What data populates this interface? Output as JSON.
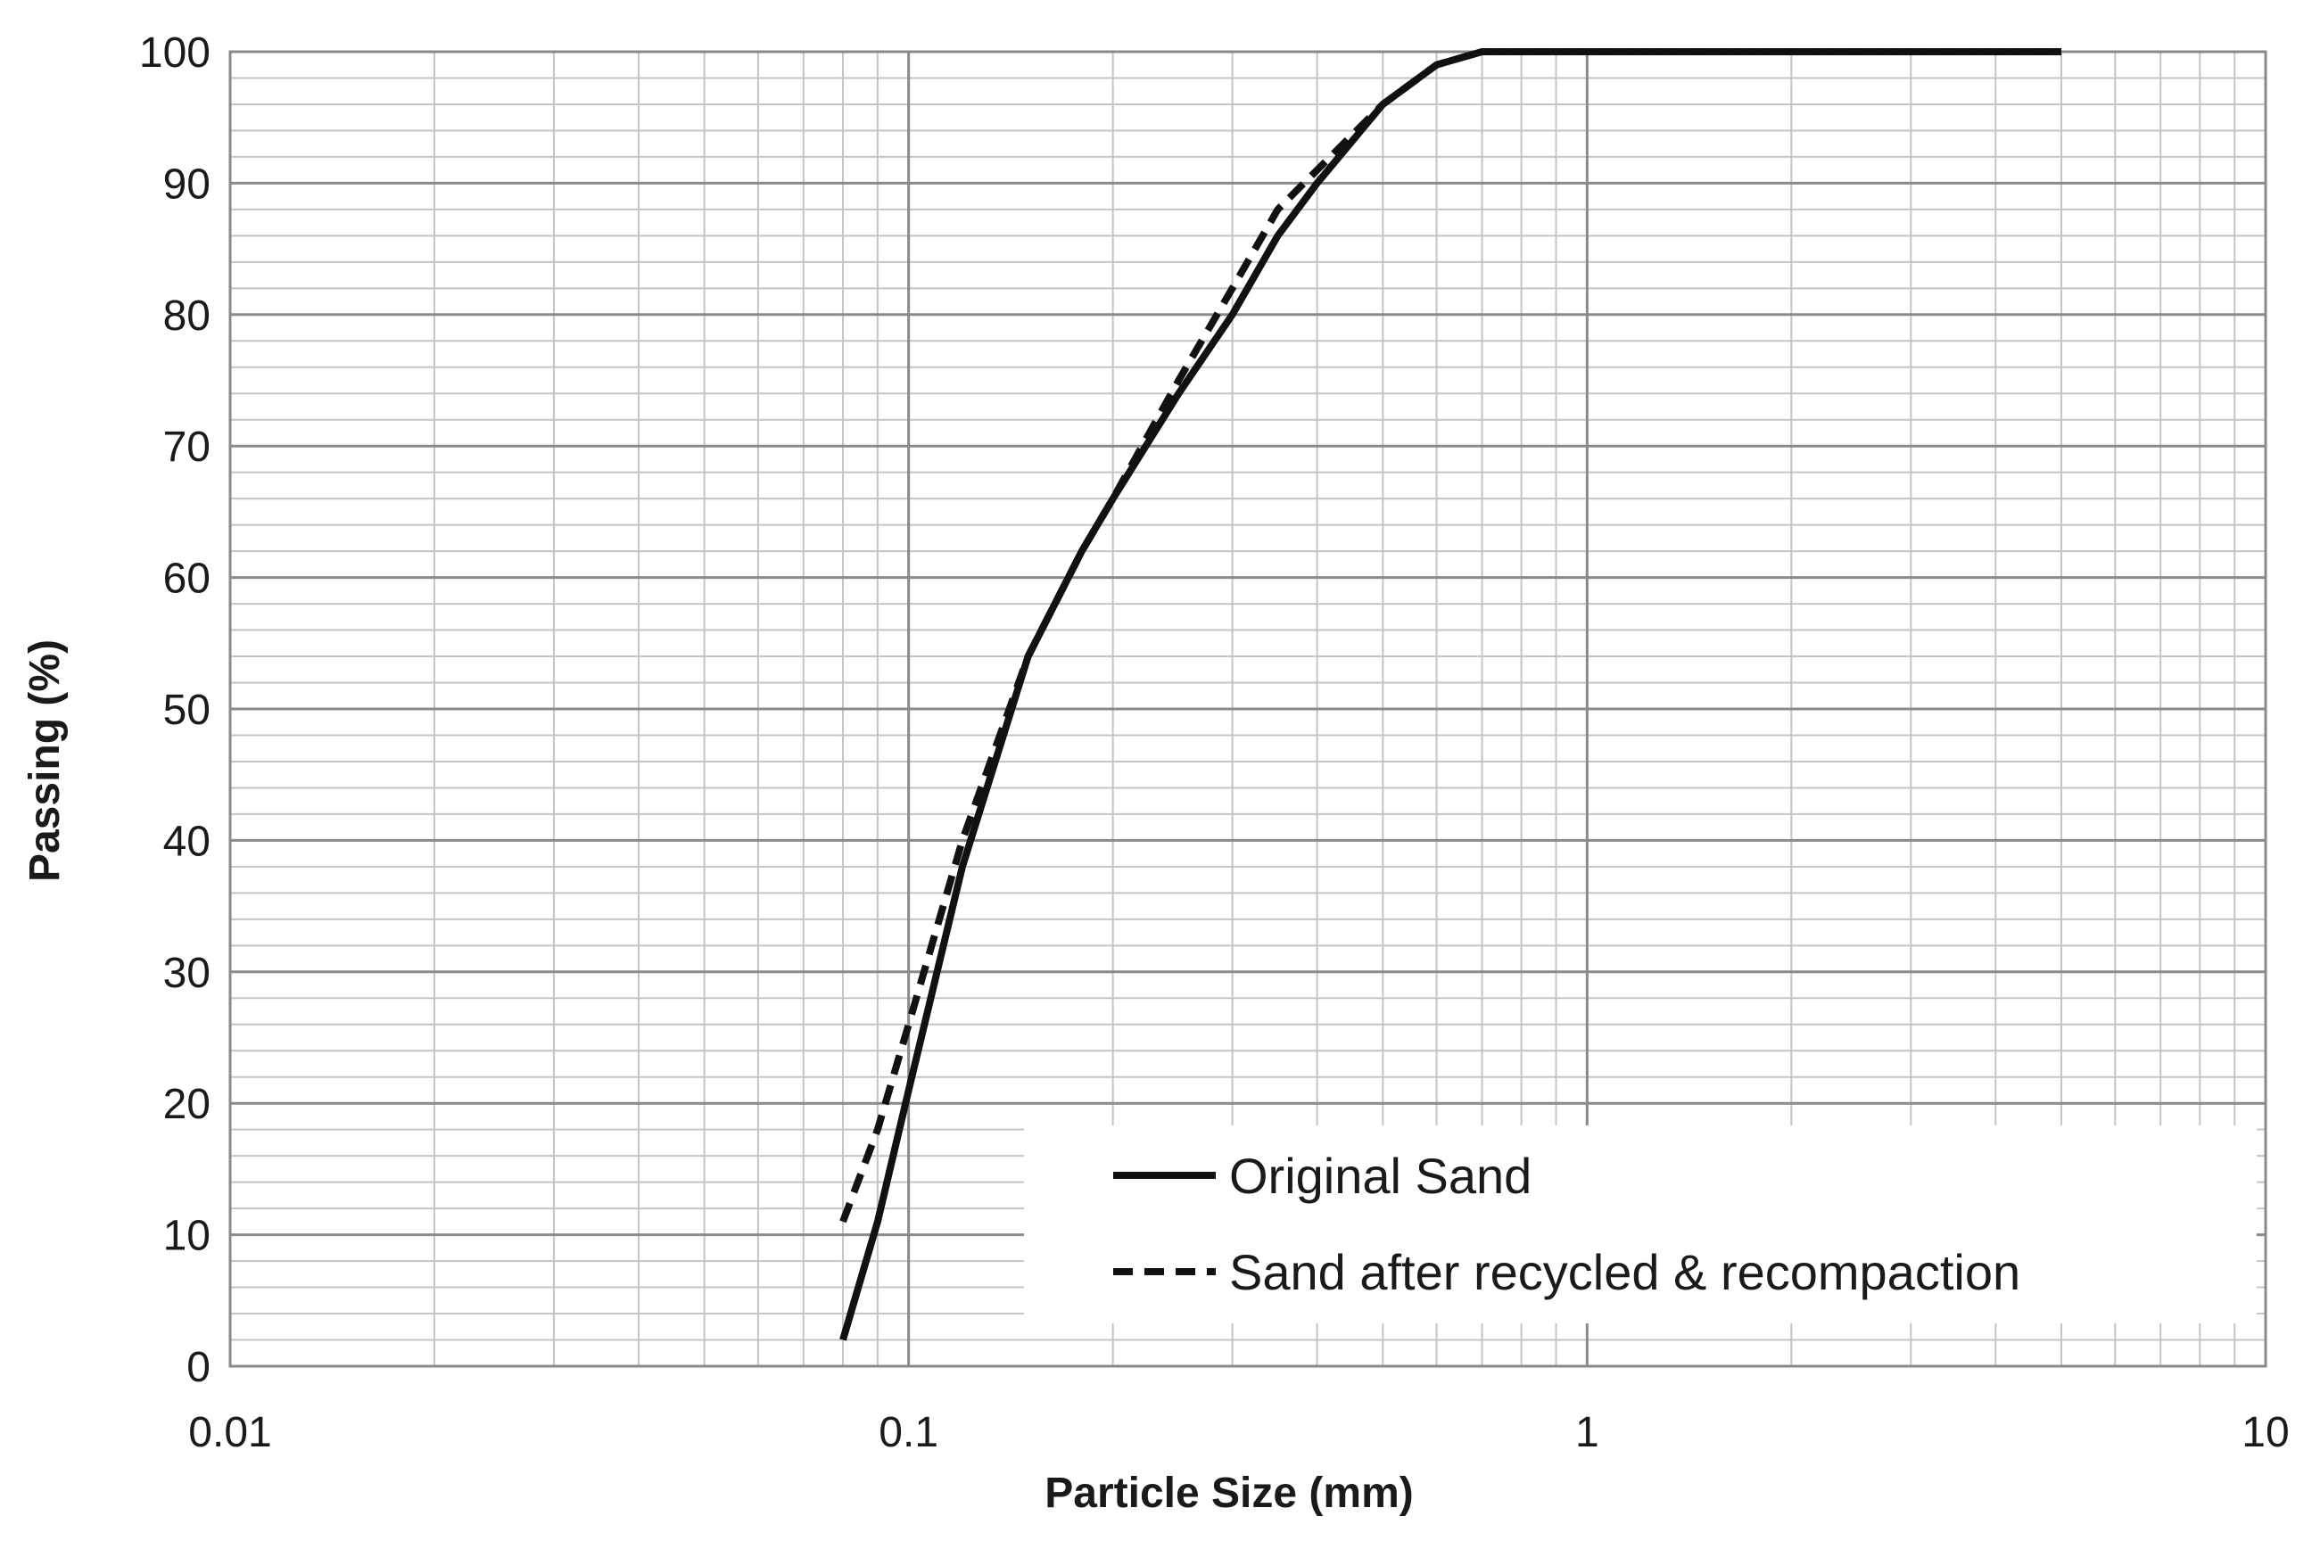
{
  "chart_data": {
    "type": "line",
    "title": "",
    "xlabel": "Particle Size (mm)",
    "ylabel": "Passing (%)",
    "x_scale": "log",
    "xlim": [
      0.01,
      10
    ],
    "ylim": [
      0,
      100
    ],
    "x_ticks": [
      "0.01",
      "0.1",
      "1",
      "10"
    ],
    "y_ticks": [
      "0",
      "10",
      "20",
      "30",
      "40",
      "50",
      "60",
      "70",
      "80",
      "90",
      "100"
    ],
    "grid": true,
    "legend_position": "bottom-right",
    "series": [
      {
        "name": "Original Sand",
        "line_style": "solid",
        "color": "#111111",
        "x": [
          0.08,
          0.09,
          0.1,
          0.12,
          0.15,
          0.18,
          0.2,
          0.25,
          0.3,
          0.35,
          0.4,
          0.5,
          0.6,
          0.7,
          0.8,
          1,
          2,
          5
        ],
        "y": [
          2,
          11,
          21,
          38,
          54,
          62,
          66,
          74,
          80,
          86,
          90,
          96,
          99,
          100,
          100,
          100,
          100,
          100
        ]
      },
      {
        "name": "Sand after recycled & recompaction",
        "line_style": "dashed",
        "color": "#111111",
        "x": [
          0.08,
          0.09,
          0.1,
          0.12,
          0.15,
          0.18,
          0.2,
          0.25,
          0.3,
          0.35,
          0.4,
          0.5,
          0.6,
          0.7,
          0.8,
          1,
          2,
          5
        ],
        "y": [
          11,
          18,
          26,
          40,
          54,
          62,
          66,
          75,
          82,
          88,
          91,
          96,
          99,
          100,
          100,
          100,
          100,
          100
        ]
      }
    ]
  }
}
